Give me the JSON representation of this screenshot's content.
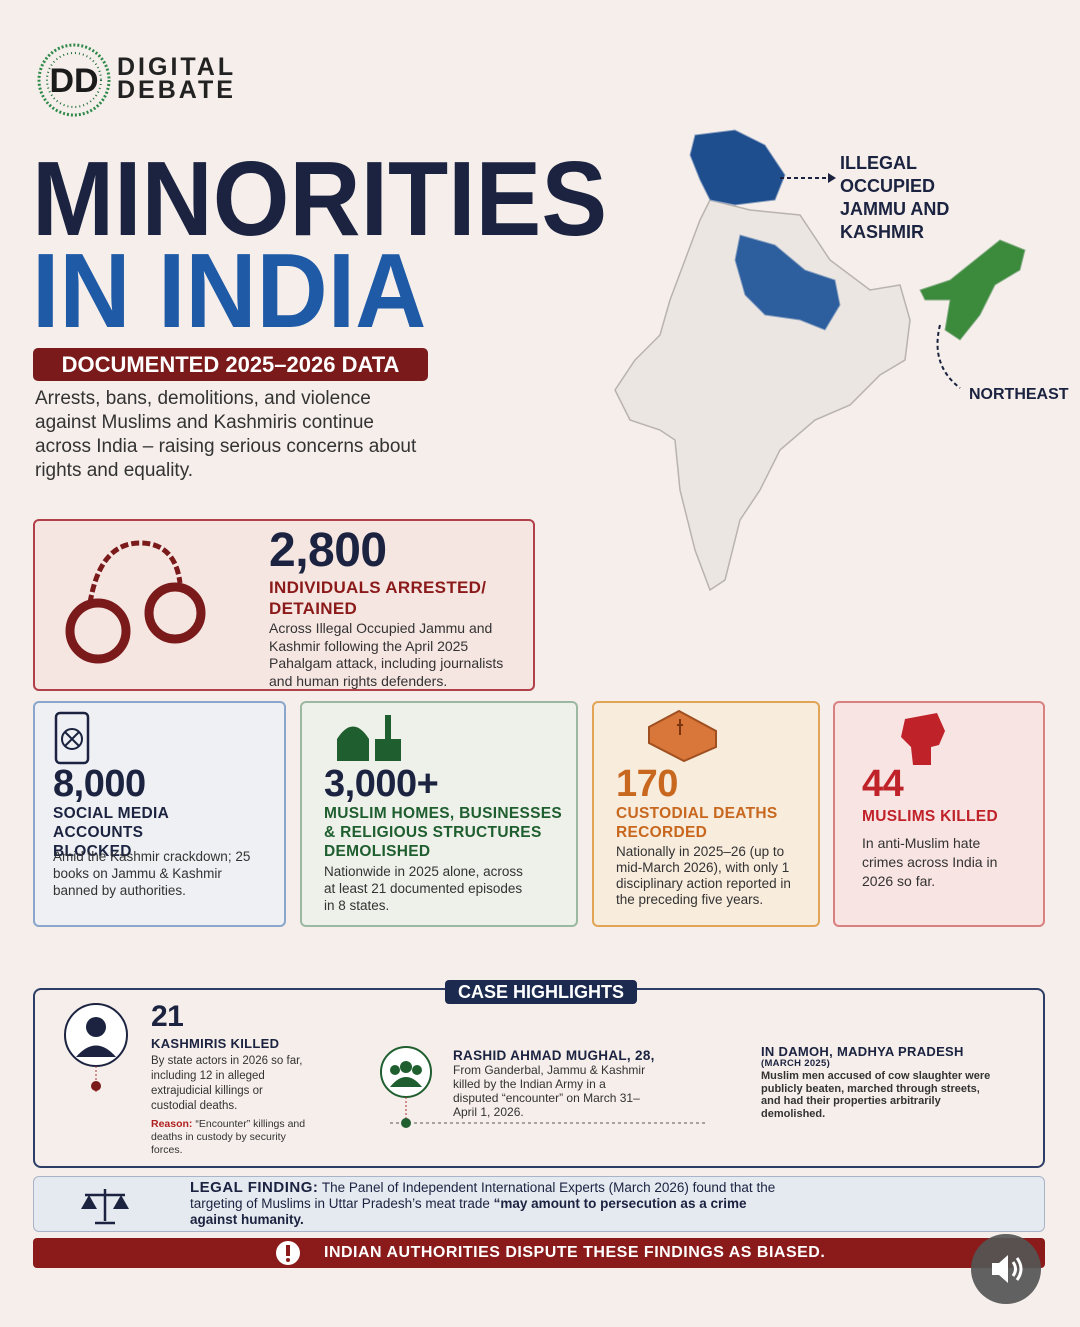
{
  "logo": {
    "line1": "DIGITAL",
    "line2": "DEBATE"
  },
  "header": {
    "title_line1": "MINORITIES",
    "title_line2": "IN INDIA",
    "badge": "DOCUMENTED 2025–2026 DATA",
    "intro": "Arrests, bans, demolitions, and violence against Muslims and Kashmiris continue across India – raising serious concerns about rights and equality."
  },
  "map": {
    "labels": [
      "ILLEGAL OCCUPIED JAMMU AND KASHMIR",
      "NORTHEAST"
    ]
  },
  "stats": [
    {
      "number": "2,800",
      "label": "INDIVIDUALS ARRESTED/ DETAINED",
      "text": "Across Illegal Occupied Jammu and Kashmir following the April 2025 Pahalgam attack, including journalists and human rights defenders."
    },
    {
      "number": "8,000",
      "label": "SOCIAL MEDIA ACCOUNTS BLOCKED",
      "text": "Amid the Kashmir crackdown; 25 books on Jammu & Kashmir banned by authorities."
    },
    {
      "number": "3,000+",
      "label": "MUSLIM HOMES, BUSINESSES & RELIGIOUS STRUCTURES DEMOLISHED",
      "text": "Nationwide in 2025 alone, across at least 21 documented episodes in 8 states."
    },
    {
      "number": "170",
      "label": "CUSTODIAL DEATHS RECORDED",
      "text": "Nationally in 2025–26 (up to mid-March 2026), with only 1 disciplinary action reported in the preceding five years."
    },
    {
      "number": "44",
      "label": "MUSLIMS KILLED",
      "text": "In anti-Muslim hate crimes across India in 2026 so far."
    }
  ],
  "case_highlights": {
    "title": "CASE HIGHLIGHTS",
    "items": [
      {
        "number": "21",
        "label": "KASHMIRIS KILLED",
        "text": "By state actors in 2026 so far, including 12 in alleged extrajudicial killings or custodial deaths.",
        "reason_label": "Reason:",
        "reason_text": "“Encounter” killings and deaths in custody by security forces."
      },
      {
        "name": "RASHID AHMAD MUGHAL, 28,",
        "text": "From Ganderbal, Jammu & Kashmir killed by the Indian Army in a disputed “encounter” on March 31–April 1, 2026."
      },
      {
        "title": "IN DAMOH, MADHYA PRADESH",
        "date": "(MARCH 2025)",
        "text": "Muslim men accused of cow slaughter were publicly beaten, marched through streets, and had their properties arbitrarily demolished."
      }
    ]
  },
  "legal_finding": {
    "label": "LEGAL FINDING:",
    "text": "The Panel of Independent International Experts (March 2026) found that the targeting of Muslims in Uttar Pradesh’s meat trade",
    "quote": "“may amount to persecution as a crime against humanity."
  },
  "alert": "INDIAN AUTHORITIES DISPUTE THESE FINDINGS AS BIASED."
}
